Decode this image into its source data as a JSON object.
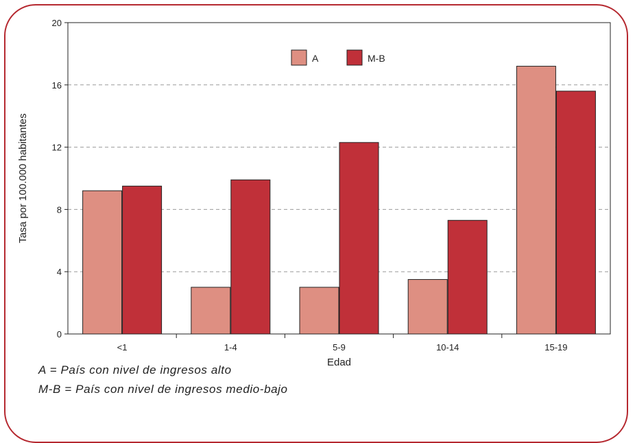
{
  "chart_data": {
    "type": "bar",
    "xlabel": "Edad",
    "ylabel": "Tasa por 100.000 habitantes",
    "categories": [
      "<1",
      "1-4",
      "5-9",
      "10-14",
      "15-19"
    ],
    "series": [
      {
        "name": "A",
        "values": [
          9.2,
          3.0,
          3.0,
          3.5,
          17.2
        ]
      },
      {
        "name": "M-B",
        "values": [
          9.5,
          9.9,
          12.3,
          7.3,
          15.6
        ]
      }
    ],
    "ylim": [
      0,
      20
    ],
    "yticks": [
      0,
      4,
      8,
      12,
      16,
      20
    ],
    "grid": "horizontal dashed",
    "legend_position": "top-center"
  },
  "colors": {
    "A": "#de8f82",
    "M-B": "#c03039",
    "frame": "#b5282f",
    "grid": "#9a9a9a"
  },
  "notes": [
    "A = País con nivel de ingresos alto",
    "M-B = País con nivel de ingresos medio-bajo"
  ]
}
